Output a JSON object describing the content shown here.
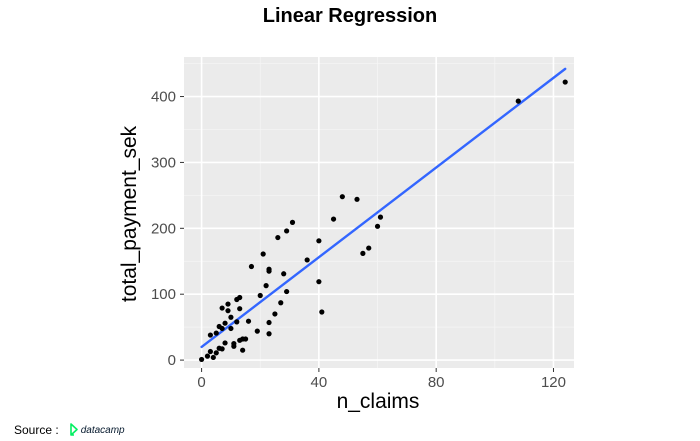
{
  "chart_data": {
    "type": "scatter",
    "title": "Linear Regression",
    "xlabel": "n_claims",
    "ylabel": "total_payment_sek",
    "xlim": [
      -6,
      127
    ],
    "ylim": [
      -12,
      460
    ],
    "x_ticks": [
      0,
      40,
      80,
      120
    ],
    "y_ticks": [
      0,
      100,
      200,
      300,
      400
    ],
    "x_tick_labels": [
      "0",
      "40",
      "80",
      "120"
    ],
    "y_tick_labels": [
      "0",
      "100",
      "200",
      "300",
      "400"
    ],
    "grid": true,
    "background": "#ebebeb",
    "point_color": "#000000",
    "line_color": "#3366ff",
    "regression_line": {
      "x": [
        0,
        124
      ],
      "y": [
        20,
        442
      ]
    },
    "points": [
      [
        0,
        1
      ],
      [
        2,
        6
      ],
      [
        3,
        13
      ],
      [
        4,
        4
      ],
      [
        3,
        38
      ],
      [
        5,
        11
      ],
      [
        5,
        41
      ],
      [
        6,
        18
      ],
      [
        7,
        17
      ],
      [
        6,
        51
      ],
      [
        7,
        48
      ],
      [
        7,
        79
      ],
      [
        8,
        26
      ],
      [
        8,
        56
      ],
      [
        9,
        85
      ],
      [
        9,
        75
      ],
      [
        10,
        48
      ],
      [
        10,
        65
      ],
      [
        11,
        25
      ],
      [
        11,
        21
      ],
      [
        12,
        92
      ],
      [
        12,
        58
      ],
      [
        13,
        95
      ],
      [
        13,
        30
      ],
      [
        13,
        78
      ],
      [
        14,
        15
      ],
      [
        14,
        32
      ],
      [
        15,
        32
      ],
      [
        16,
        59
      ],
      [
        17,
        142
      ],
      [
        19,
        44
      ],
      [
        20,
        98
      ],
      [
        21,
        161
      ],
      [
        22,
        113
      ],
      [
        23,
        40
      ],
      [
        23,
        57
      ],
      [
        23,
        135
      ],
      [
        23,
        138
      ],
      [
        25,
        70
      ],
      [
        26,
        186
      ],
      [
        27,
        87
      ],
      [
        28,
        131
      ],
      [
        29,
        104
      ],
      [
        29,
        196
      ],
      [
        31,
        209
      ],
      [
        36,
        152
      ],
      [
        40,
        119
      ],
      [
        40,
        181
      ],
      [
        41,
        73
      ],
      [
        45,
        214
      ],
      [
        48,
        248
      ],
      [
        53,
        244
      ],
      [
        55,
        162
      ],
      [
        57,
        170
      ],
      [
        60,
        203
      ],
      [
        61,
        217
      ],
      [
        108,
        393
      ],
      [
        124,
        422
      ]
    ]
  },
  "source": {
    "label": "Source :",
    "logo_text": "datacamp",
    "logo_color": "#05192d",
    "logo_accent": "#03ef62"
  }
}
